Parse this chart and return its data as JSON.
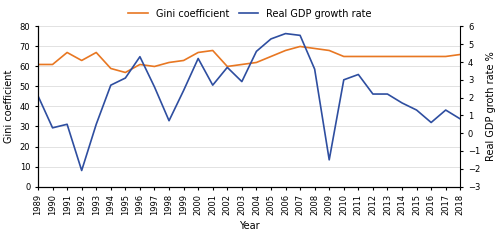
{
  "years": [
    1989,
    1990,
    1991,
    1992,
    1993,
    1994,
    1995,
    1996,
    1997,
    1998,
    1999,
    2000,
    2001,
    2002,
    2003,
    2004,
    2005,
    2006,
    2007,
    2008,
    2009,
    2010,
    2011,
    2012,
    2013,
    2014,
    2015,
    2016,
    2017,
    2018
  ],
  "gini": [
    61,
    61,
    67,
    63,
    67,
    59,
    57,
    61,
    60,
    62,
    63,
    67,
    68,
    60,
    61,
    62,
    65,
    68,
    70,
    69,
    68,
    65,
    65,
    65,
    65,
    65,
    65,
    65,
    65,
    66
  ],
  "gdp_growth": [
    2.1,
    0.3,
    0.5,
    -2.1,
    0.5,
    2.7,
    3.1,
    4.3,
    2.6,
    0.7,
    2.4,
    4.2,
    2.7,
    3.7,
    2.9,
    4.6,
    5.3,
    5.6,
    5.5,
    3.6,
    -1.5,
    3.0,
    3.3,
    2.2,
    2.2,
    1.7,
    1.3,
    0.6,
    1.3,
    0.8
  ],
  "gini_color": "#E87722",
  "gdp_color": "#2E4EA0",
  "bg_color": "#FFFFFF",
  "gini_label": "Gini coefficient",
  "gdp_label": "Real GDP growth rate",
  "xlabel": "Year",
  "ylabel_left": "Gini coefficient",
  "ylabel_right": "Real GDP groth rate %",
  "ylim_left": [
    0,
    80
  ],
  "ylim_right": [
    -3,
    6
  ],
  "yticks_left": [
    0,
    10,
    20,
    30,
    40,
    50,
    60,
    70,
    80
  ],
  "yticks_right": [
    -3,
    -2,
    -1,
    0,
    1,
    2,
    3,
    4,
    5,
    6
  ],
  "axis_fontsize": 7,
  "tick_fontsize": 6,
  "legend_fontsize": 7
}
